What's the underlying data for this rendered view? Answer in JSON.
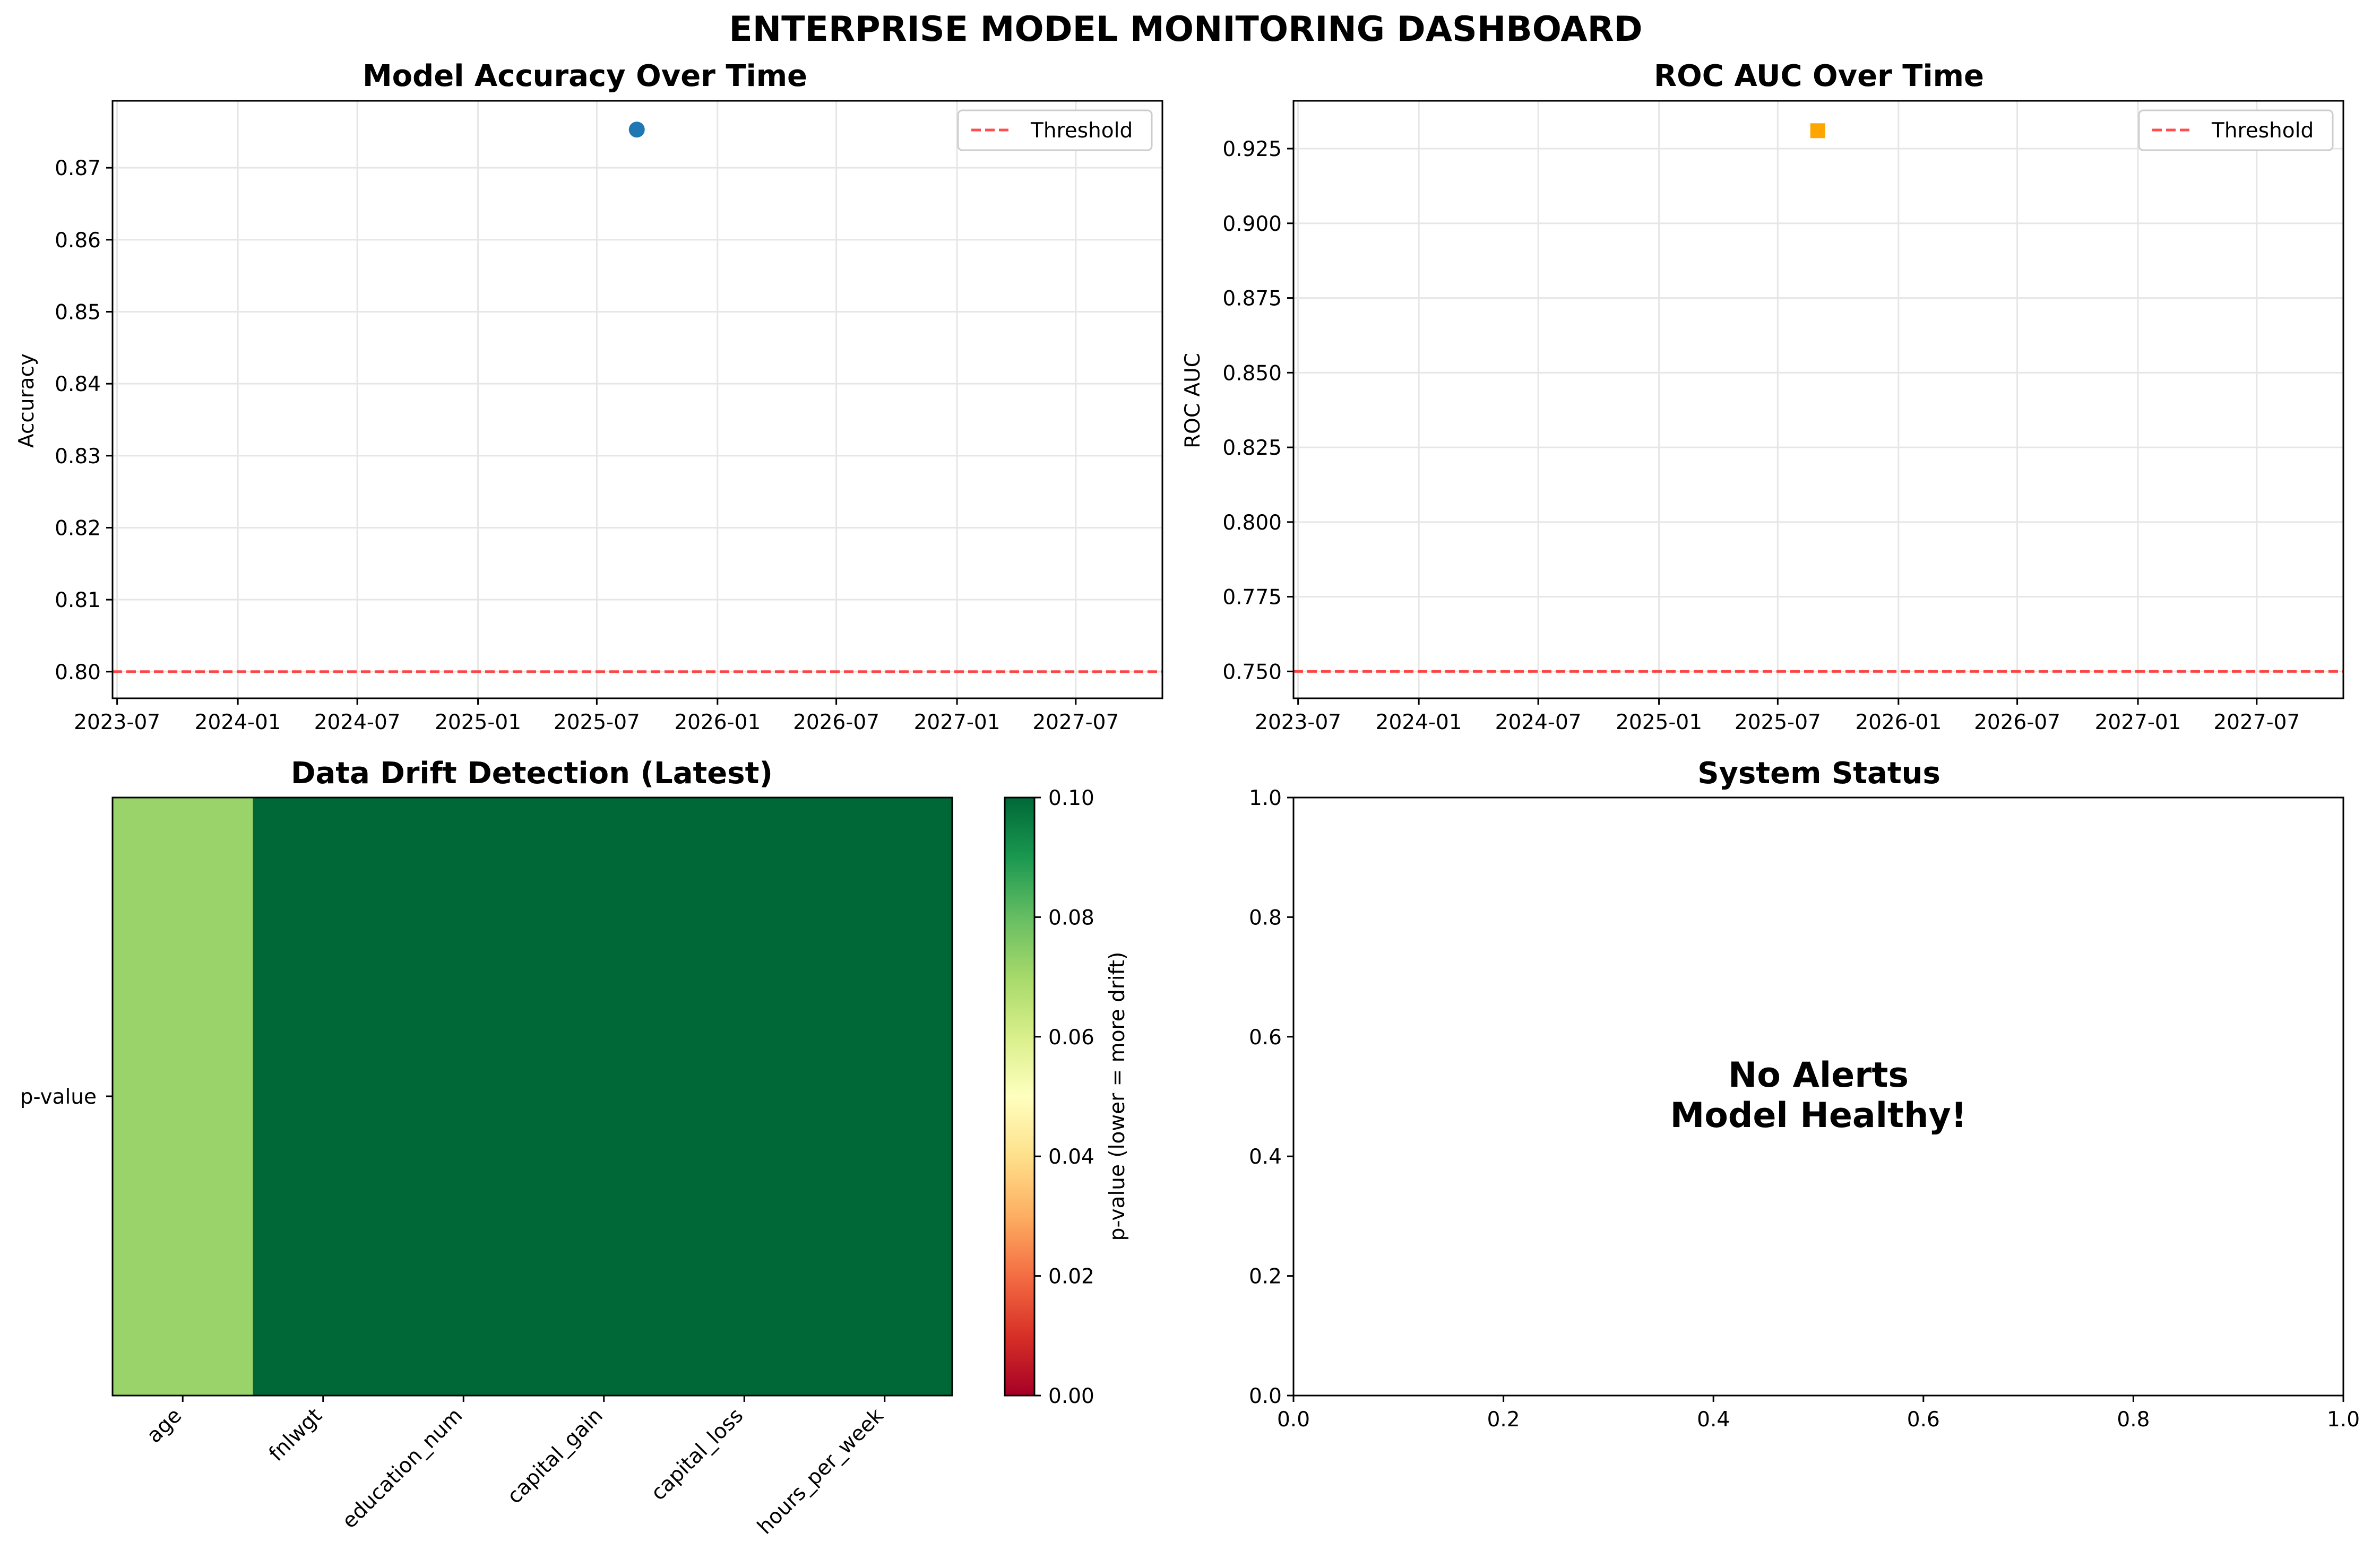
{
  "suptitle": "ENTERPRISE MODEL MONITORING DASHBOARD",
  "colors": {
    "accuracy_marker": "#1f77b4",
    "roc_marker": "#ffa500",
    "threshold": "#ff0000",
    "grid": "#e6e6e6"
  },
  "chart_data": [
    {
      "type": "scatter",
      "title": "Model Accuracy Over Time",
      "xlabel": "",
      "ylabel": "Accuracy",
      "x_type": "date",
      "xlim": [
        "2023-06-24",
        "2027-11-10"
      ],
      "ylim": [
        0.7963,
        0.8793
      ],
      "xticks": [
        "2023-07",
        "2024-01",
        "2024-07",
        "2025-01",
        "2025-07",
        "2026-01",
        "2026-07",
        "2027-01",
        "2027-07"
      ],
      "yticks": [
        "0.80",
        "0.81",
        "0.82",
        "0.83",
        "0.84",
        "0.85",
        "0.86",
        "0.87"
      ],
      "series": [
        {
          "x": [
            "2025-08-31"
          ],
          "values": [
            0.8753
          ],
          "marker": "circle"
        }
      ],
      "threshold": {
        "label": "Threshold",
        "value": 0.8
      },
      "legend": {
        "position": "top-right",
        "entries": [
          "Threshold"
        ]
      },
      "grid": true
    },
    {
      "type": "scatter",
      "title": "ROC AUC Over Time",
      "xlabel": "",
      "ylabel": "ROC AUC",
      "x_type": "date",
      "xlim": [
        "2023-06-24",
        "2027-11-10"
      ],
      "ylim": [
        0.741,
        0.941
      ],
      "xticks": [
        "2023-07",
        "2024-01",
        "2024-07",
        "2025-01",
        "2025-07",
        "2026-01",
        "2026-07",
        "2027-01",
        "2027-07"
      ],
      "yticks": [
        "0.750",
        "0.775",
        "0.800",
        "0.825",
        "0.850",
        "0.875",
        "0.900",
        "0.925"
      ],
      "series": [
        {
          "x": [
            "2025-08-31"
          ],
          "values": [
            0.931
          ],
          "marker": "square"
        }
      ],
      "threshold": {
        "label": "Threshold",
        "value": 0.75
      },
      "legend": {
        "position": "top-right",
        "entries": [
          "Threshold"
        ]
      },
      "grid": true
    },
    {
      "type": "heatmap",
      "title": "Data Drift Detection (Latest)",
      "categories": [
        "age",
        "fnlwgt",
        "education_num",
        "capital_gain",
        "capital_loss",
        "hours_per_week"
      ],
      "rows": [
        "p-value"
      ],
      "values": [
        [
          0.072,
          0.95,
          0.95,
          0.95,
          0.95,
          0.95
        ]
      ],
      "colormap": "RdYlGn",
      "vmin": 0,
      "vmax": 0.1,
      "colorbar": {
        "label": "p-value (lower = more drift)",
        "ticks": [
          "0.00",
          "0.02",
          "0.04",
          "0.06",
          "0.08",
          "0.10"
        ]
      }
    },
    {
      "type": "table",
      "title": "System Status",
      "xlim": [
        0,
        1
      ],
      "ylim": [
        0,
        1
      ],
      "xticks": [
        "0.0",
        "0.2",
        "0.4",
        "0.6",
        "0.8",
        "1.0"
      ],
      "yticks": [
        "0.0",
        "0.2",
        "0.4",
        "0.6",
        "0.8",
        "1.0"
      ],
      "message_lines": [
        "No Alerts",
        "Model Healthy!"
      ],
      "message_position": [
        0.5,
        0.5
      ]
    }
  ]
}
